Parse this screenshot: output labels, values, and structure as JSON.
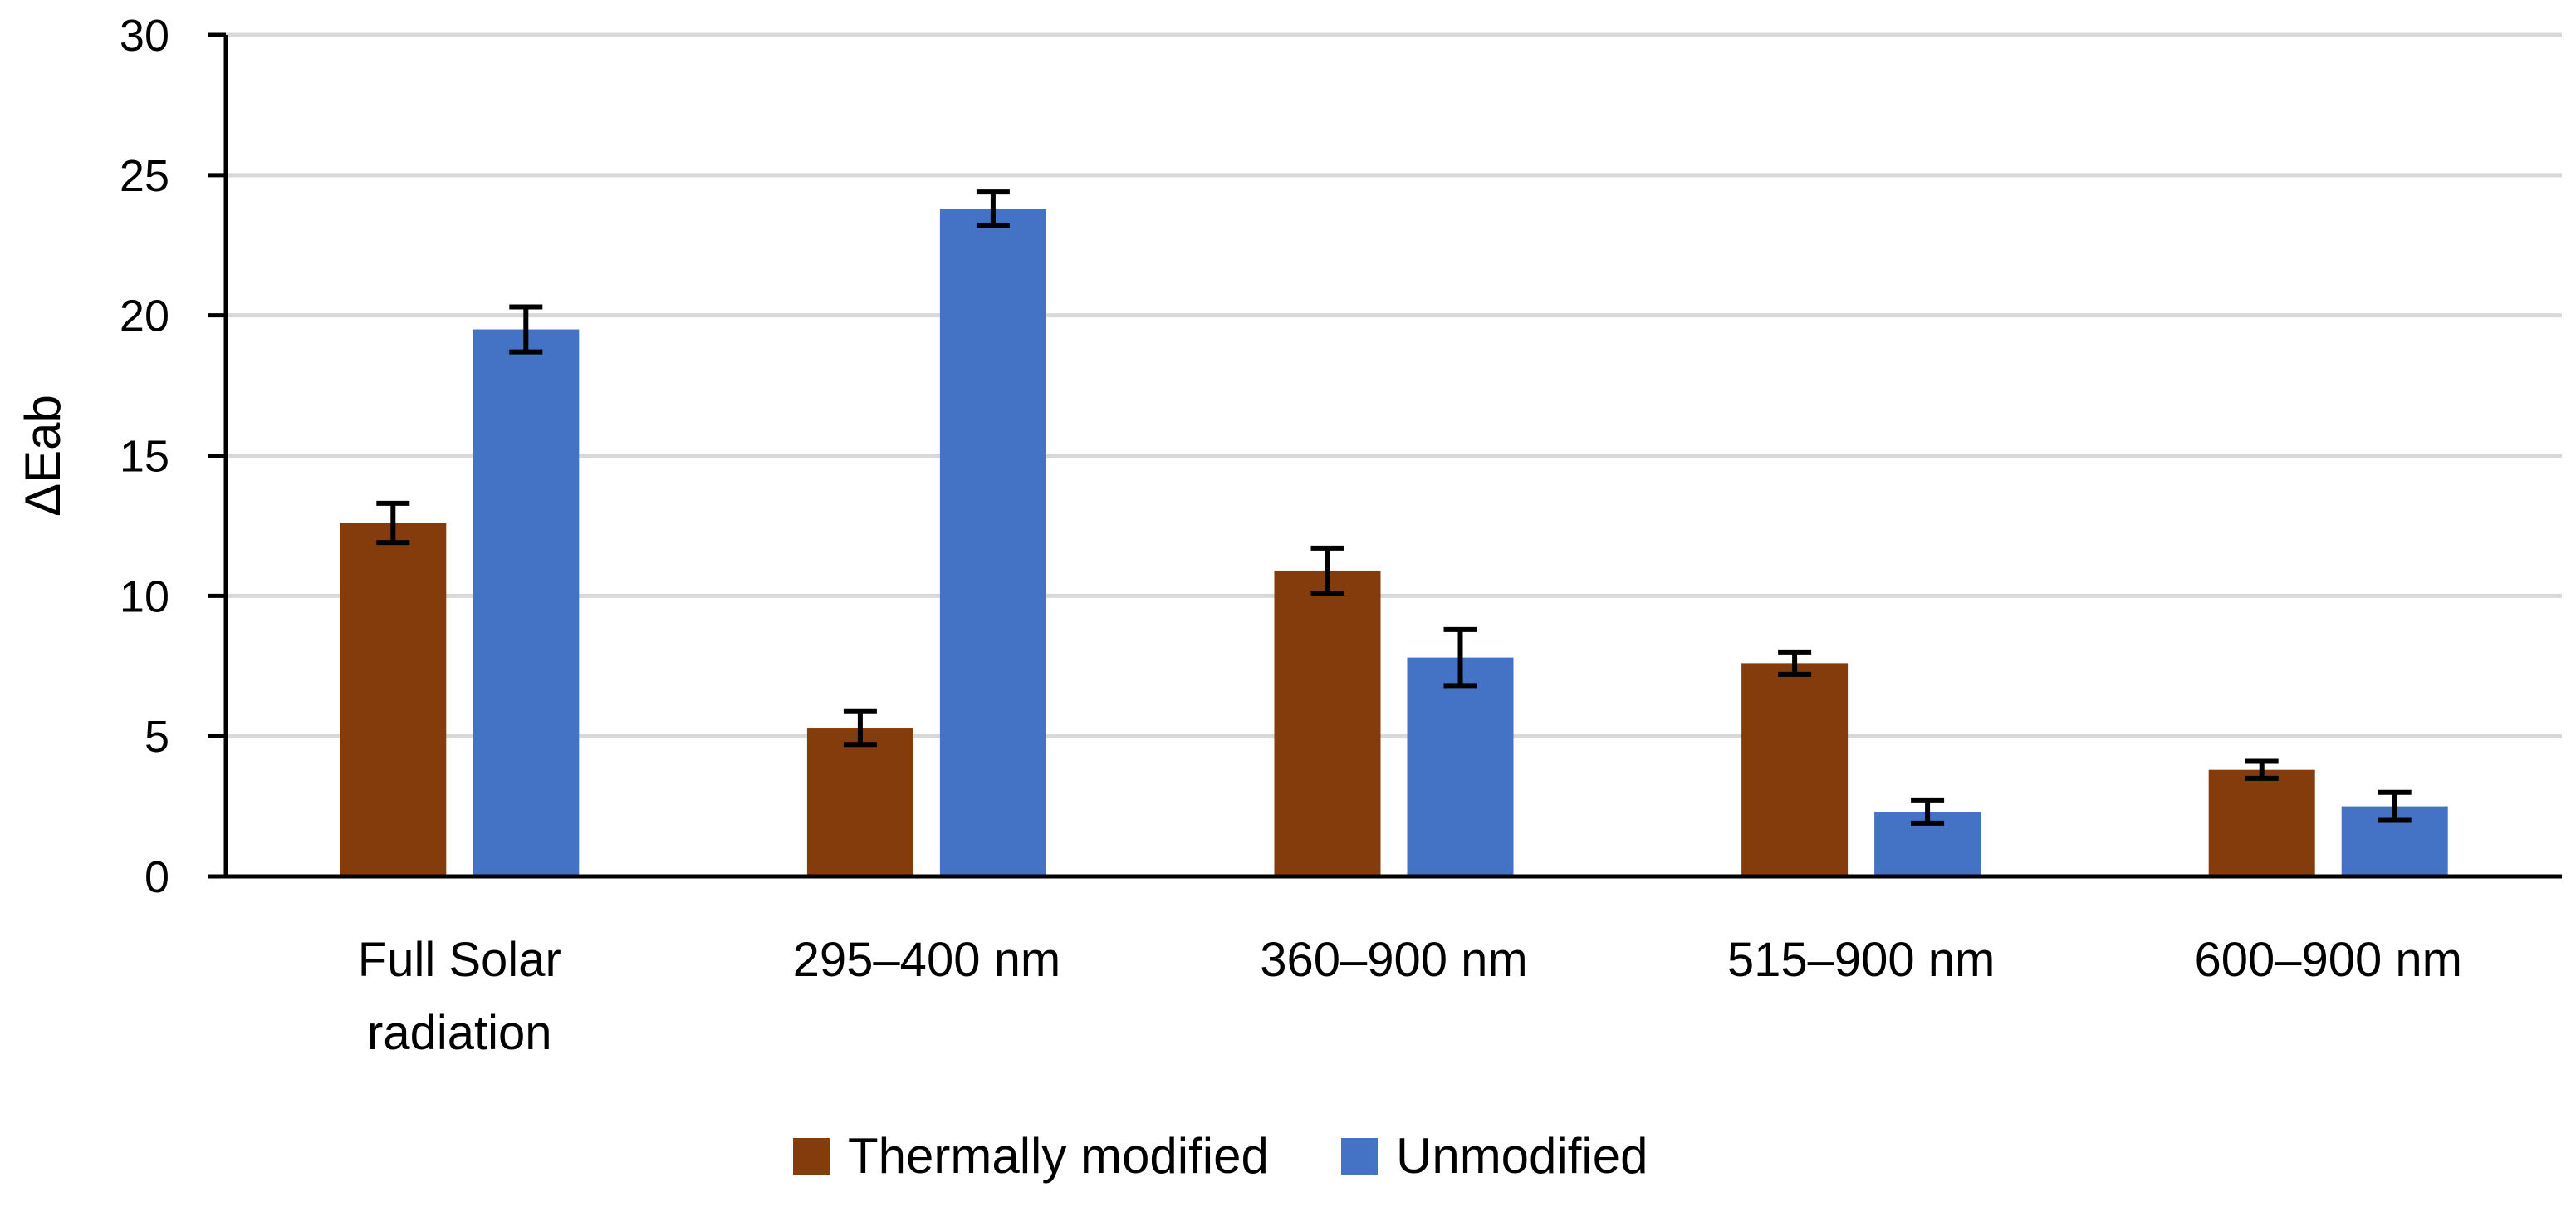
{
  "chart_data": {
    "type": "bar",
    "title": "",
    "xlabel": "",
    "ylabel": "ΔEab",
    "ylim": [
      0,
      30
    ],
    "yticks": [
      0,
      5,
      10,
      15,
      20,
      25,
      30
    ],
    "grid": true,
    "legend_position": "bottom",
    "categories": [
      [
        "Full Solar",
        "radiation"
      ],
      [
        "295–400 nm"
      ],
      [
        "360–900 nm"
      ],
      [
        "515–900 nm"
      ],
      [
        "600–900 nm"
      ]
    ],
    "series": [
      {
        "name": "Thermally modified",
        "color": "#843c0c",
        "values": [
          12.6,
          5.3,
          10.9,
          7.6,
          3.8
        ],
        "errors": [
          0.7,
          0.6,
          0.8,
          0.4,
          0.3
        ]
      },
      {
        "name": "Unmodified",
        "color": "#4472c4",
        "values": [
          19.5,
          23.8,
          7.8,
          2.3,
          2.5
        ],
        "errors": [
          0.8,
          0.6,
          1.0,
          0.4,
          0.5
        ]
      }
    ]
  }
}
